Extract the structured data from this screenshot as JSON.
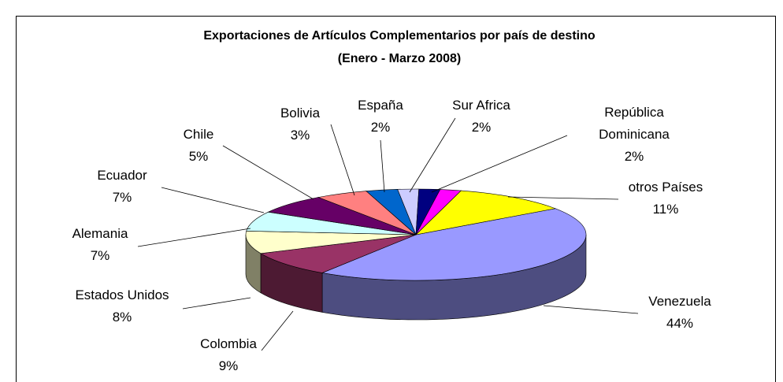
{
  "chart_data": {
    "type": "pie",
    "title": "Exportaciones de Artículos Complementarios por país de destino",
    "subtitle": "(Enero - Marzo 2008)",
    "categories": [
      "Venezuela",
      "Colombia",
      "Estados Unidos",
      "Alemania",
      "Ecuador",
      "Chile",
      "Bolivia",
      "España",
      "Sur Africa",
      "República Dominicana",
      "otros Países"
    ],
    "values": [
      44,
      9,
      8,
      7,
      7,
      5,
      3,
      2,
      2,
      2,
      11
    ],
    "value_labels": [
      "44%",
      "9%",
      "8%",
      "7%",
      "7%",
      "5%",
      "3%",
      "2%",
      "2%",
      "2%",
      "11%"
    ],
    "colors": [
      "#9999ff",
      "#993366",
      "#ffffcc",
      "#ccffff",
      "#660066",
      "#ff8080",
      "#0066cc",
      "#ccccff",
      "#000080",
      "#ff00ff",
      "#ffff00"
    ]
  }
}
